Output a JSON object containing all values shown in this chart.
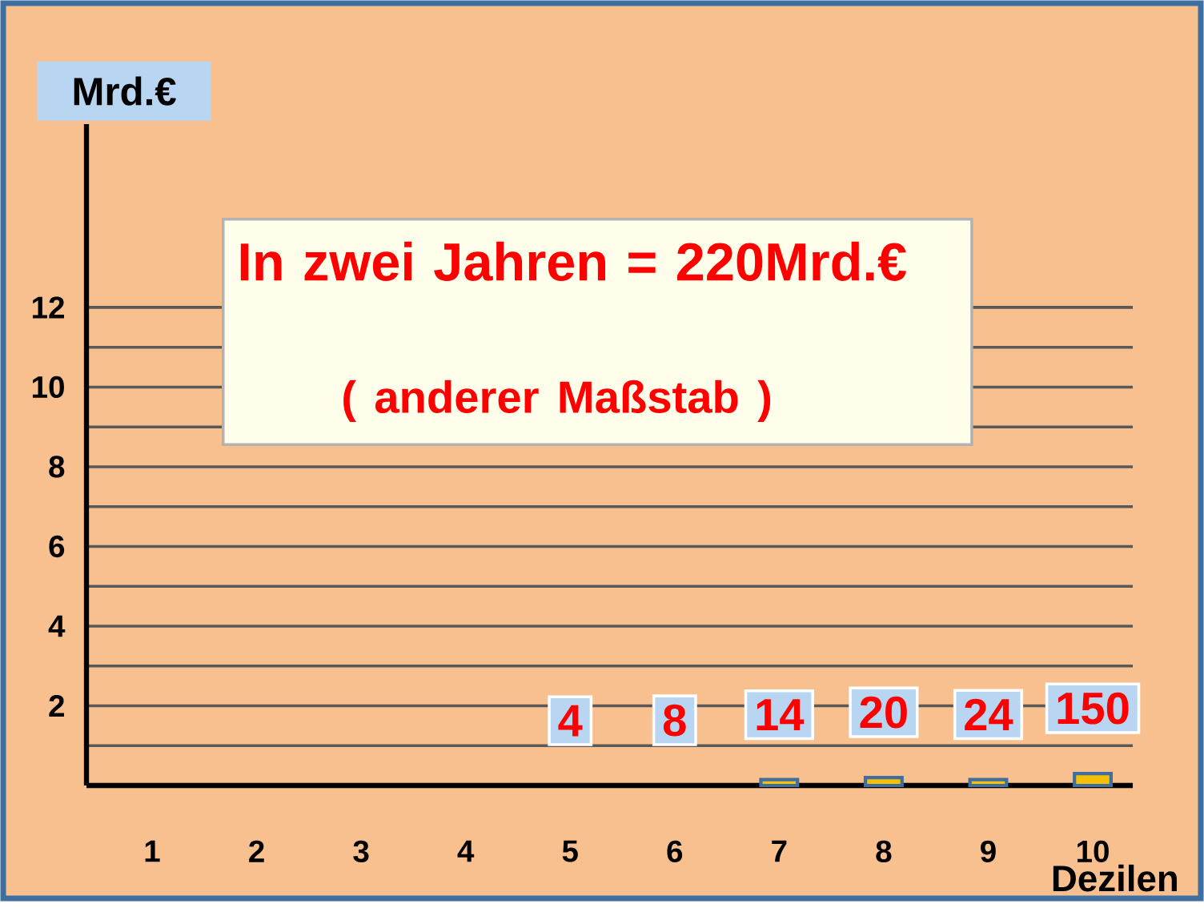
{
  "chart_data": {
    "type": "bar",
    "ylabel": "Mrd.€",
    "xlabel": "Dezilen",
    "categories": [
      "1",
      "2",
      "3",
      "4",
      "5",
      "6",
      "7",
      "8",
      "9",
      "10"
    ],
    "values": [
      null,
      null,
      null,
      null,
      null,
      null,
      0.15,
      0.2,
      0.15,
      0.3
    ],
    "color": "#f5c000",
    "ylim": [
      0,
      16.6
    ],
    "yticks": [
      {
        "value": 1,
        "label": null
      },
      2,
      {
        "value": 3,
        "label": null
      },
      4,
      {
        "value": 5,
        "label": null
      },
      6,
      {
        "value": 7,
        "label": null
      },
      8,
      {
        "value": 9,
        "label": null
      },
      10,
      {
        "value": 11,
        "label": null
      },
      12
    ],
    "grid": "y",
    "annotations": [
      "In zwei Jahren = 220Mrd.€",
      "( anderer  Maßstab )",
      "4",
      "8",
      {
        "text": "14",
        "x": "7",
        "y": 0.15
      },
      {
        "text": "20",
        "x": "8",
        "y": 0.2
      },
      {
        "text": "24",
        "x": "9",
        "y": 0.15
      },
      {
        "text": "150",
        "x": "10",
        "y": 0.3
      }
    ]
  }
}
